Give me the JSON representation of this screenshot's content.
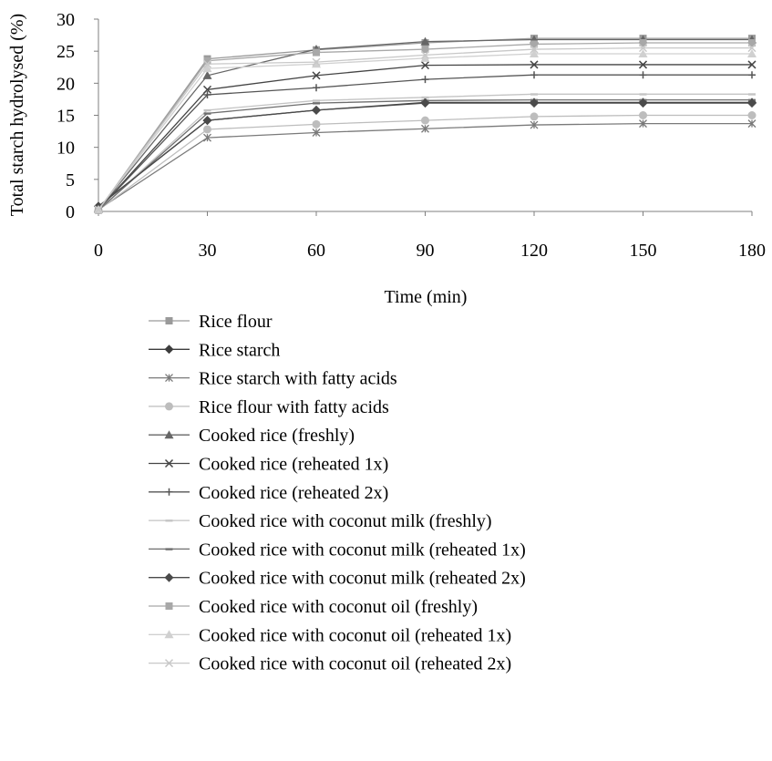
{
  "chart_data": {
    "type": "line",
    "title": "",
    "xlabel": "Time (min)",
    "ylabel": "Total starch hydrolysed (%)",
    "x": [
      0,
      30,
      60,
      90,
      120,
      150,
      180
    ],
    "xlim": [
      0,
      180
    ],
    "ylim": [
      0,
      30
    ],
    "xticks": [
      0,
      30,
      60,
      90,
      120,
      150,
      180
    ],
    "yticks": [
      0,
      5,
      10,
      15,
      20,
      25,
      30
    ],
    "grid": false,
    "legend_position": "bottom",
    "series": [
      {
        "name": "Rice flour",
        "color": "#9a9a9a",
        "marker": "square",
        "values": [
          0.2,
          23.8,
          25.2,
          26.3,
          27.0,
          27.0,
          27.0
        ]
      },
      {
        "name": "Rice starch",
        "color": "#3c3c3c",
        "marker": "diamond",
        "values": [
          0.8,
          14.2,
          15.8,
          17.0,
          17.0,
          17.0,
          17.0
        ]
      },
      {
        "name": "Rice starch with fatty acids",
        "color": "#7a7a7a",
        "marker": "asterisk",
        "values": [
          0.3,
          11.5,
          12.3,
          12.9,
          13.5,
          13.7,
          13.7
        ]
      },
      {
        "name": "Rice flour with fatty acids",
        "color": "#bdbdbd",
        "marker": "circle",
        "values": [
          0.2,
          12.8,
          13.6,
          14.2,
          14.8,
          15.0,
          15.0
        ]
      },
      {
        "name": "Cooked rice (freshly)",
        "color": "#666666",
        "marker": "triangle",
        "values": [
          0.3,
          21.2,
          25.3,
          26.5,
          26.8,
          26.8,
          26.8
        ]
      },
      {
        "name": "Cooked rice (reheated 1x)",
        "color": "#444444",
        "marker": "x",
        "values": [
          0.3,
          19.0,
          21.2,
          22.8,
          22.9,
          22.9,
          22.9
        ]
      },
      {
        "name": "Cooked rice (reheated 2x)",
        "color": "#555555",
        "marker": "plus",
        "values": [
          0.3,
          18.2,
          19.3,
          20.6,
          21.3,
          21.3,
          21.3
        ]
      },
      {
        "name": "Cooked rice with coconut milk (freshly)",
        "color": "#c4c4c4",
        "marker": "dash",
        "values": [
          0.2,
          15.8,
          17.3,
          17.8,
          18.3,
          18.3,
          18.3
        ]
      },
      {
        "name": "Cooked rice with coconut milk (reheated 1x)",
        "color": "#6e6e6e",
        "marker": "dash",
        "values": [
          0.2,
          15.3,
          16.9,
          17.3,
          17.4,
          17.4,
          17.4
        ]
      },
      {
        "name": "Cooked rice with coconut milk (reheated 2x)",
        "color": "#4a4a4a",
        "marker": "diamond",
        "values": [
          0.8,
          14.2,
          15.8,
          16.9,
          16.9,
          16.9,
          16.9
        ]
      },
      {
        "name": "Cooked rice with coconut oil (freshly)",
        "color": "#a8a8a8",
        "marker": "square",
        "values": [
          0.2,
          23.5,
          24.8,
          25.3,
          26.1,
          26.3,
          26.3
        ]
      },
      {
        "name": "Cooked rice with coconut oil (reheated 1x)",
        "color": "#d0d0d0",
        "marker": "triangle",
        "values": [
          0.3,
          22.3,
          23.0,
          23.9,
          24.6,
          24.6,
          24.6
        ]
      },
      {
        "name": "Cooked rice with coconut oil (reheated 2x)",
        "color": "#c8c8c8",
        "marker": "x",
        "values": [
          0.3,
          23.0,
          23.3,
          24.4,
          25.3,
          25.5,
          25.5
        ]
      }
    ]
  }
}
